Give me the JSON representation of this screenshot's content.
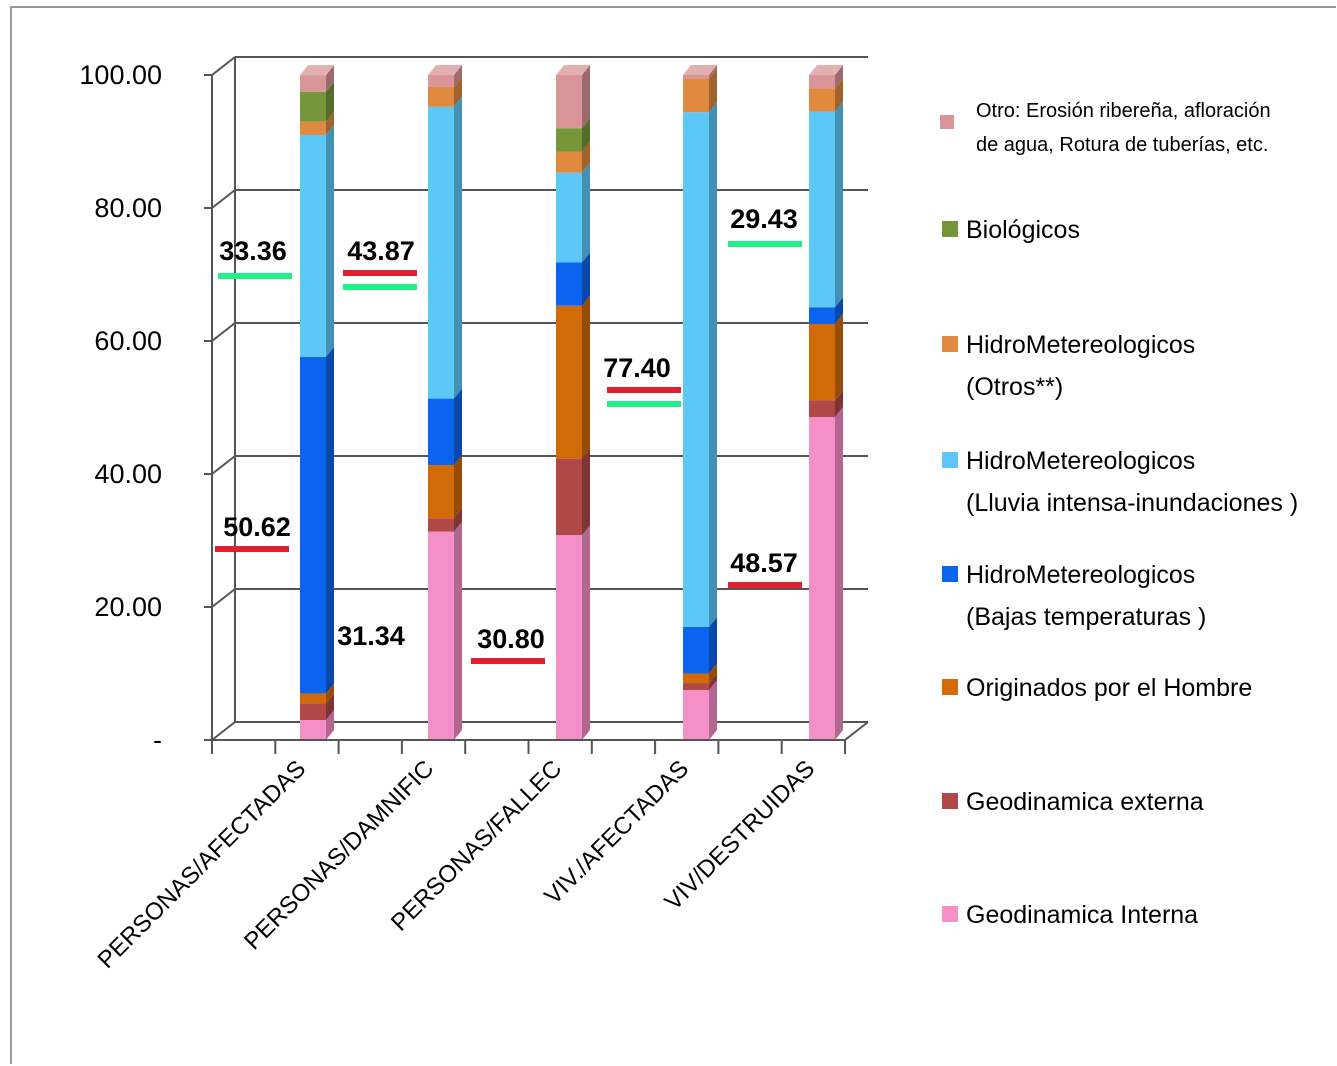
{
  "chart_data": {
    "type": "bar",
    "stacked": true,
    "percent": true,
    "categories": [
      "PERSONAS/AFECTADAS",
      "PERSONAS/DAMNIFIC",
      "PERSONAS/FALLEC",
      "VIV./AFECTADAS",
      "VIV/DESTRUIDAS"
    ],
    "yticks": [
      "-",
      "20.00",
      "40.00",
      "60.00",
      "80.00",
      "100.00"
    ],
    "ylim": [
      0,
      100
    ],
    "grid": true,
    "legend_position": "right",
    "series": [
      {
        "name": "Geodinamica Interna",
        "color": "#f58fc8",
        "values": [
          3.0,
          31.34,
          30.8,
          7.5,
          48.57
        ]
      },
      {
        "name": "Geodinamica externa",
        "color": "#b04848",
        "values": [
          2.5,
          2.0,
          11.5,
          1.0,
          2.5
        ]
      },
      {
        "name": "Originados por el Hombre",
        "color": "#d26a08",
        "values": [
          1.5,
          8.0,
          23.0,
          1.5,
          11.5
        ]
      },
      {
        "name": "HidroMetereologicos (Bajas temperaturas )",
        "color": "#0c64ee",
        "values": [
          50.62,
          10.0,
          6.5,
          7.0,
          2.5
        ]
      },
      {
        "name": "HidroMetereologicos (Lluvia intensa-inundaciones )",
        "color": "#5cc8f8",
        "values": [
          33.36,
          43.87,
          13.5,
          77.4,
          29.43
        ]
      },
      {
        "name": "HidroMetereologicos (Otros**)",
        "color": "#e08a40",
        "values": [
          2.0,
          3.0,
          3.2,
          5.0,
          3.5
        ]
      },
      {
        "name": "Biológicos",
        "color": "#76963a",
        "values": [
          4.5,
          0.0,
          3.5,
          0.0,
          0.0
        ]
      },
      {
        "name": "Otro: Erosión ribereña, afloración de agua, Rotura de tuberías, etc.",
        "color": "#d99597",
        "values": [
          2.5,
          1.79,
          8.0,
          0.6,
          2.0
        ]
      }
    ],
    "annotations": [
      {
        "text": "33.36",
        "underline": "green"
      },
      {
        "text": "43.87",
        "underline": "red-green"
      },
      {
        "text": "77.40",
        "underline": "red-green"
      },
      {
        "text": "29.43",
        "underline": "green"
      },
      {
        "text": "50.62",
        "underline": "red"
      },
      {
        "text": "31.34",
        "underline": "none"
      },
      {
        "text": "30.80",
        "underline": "red"
      },
      {
        "text": "48.57",
        "underline": "red"
      }
    ]
  },
  "legend": [
    {
      "lines": [
        "Otro: Erosión ribereña, afloración",
        "de agua, Rotura de tuberías, etc."
      ],
      "color": "#d99597",
      "small": true
    },
    {
      "lines": [
        "Biológicos"
      ],
      "color": "#76963a"
    },
    {
      "lines": [
        "HidroMetereologicos",
        "(Otros**)"
      ],
      "color": "#e08a40"
    },
    {
      "lines": [
        "HidroMetereologicos",
        "(Lluvia intensa-inundaciones )"
      ],
      "color": "#5cc8f8"
    },
    {
      "lines": [
        "HidroMetereologicos",
        "(Bajas temperaturas )"
      ],
      "color": "#0c64ee"
    },
    {
      "lines": [
        "Originados por el Hombre"
      ],
      "color": "#d26a08"
    },
    {
      "lines": [
        "Geodinamica externa"
      ],
      "color": "#b04848"
    },
    {
      "lines": [
        "Geodinamica Interna"
      ],
      "color": "#f58fc8"
    }
  ],
  "colors": {
    "grid": "#555555",
    "underline_red": "#e02030",
    "underline_green": "#22ee88"
  }
}
